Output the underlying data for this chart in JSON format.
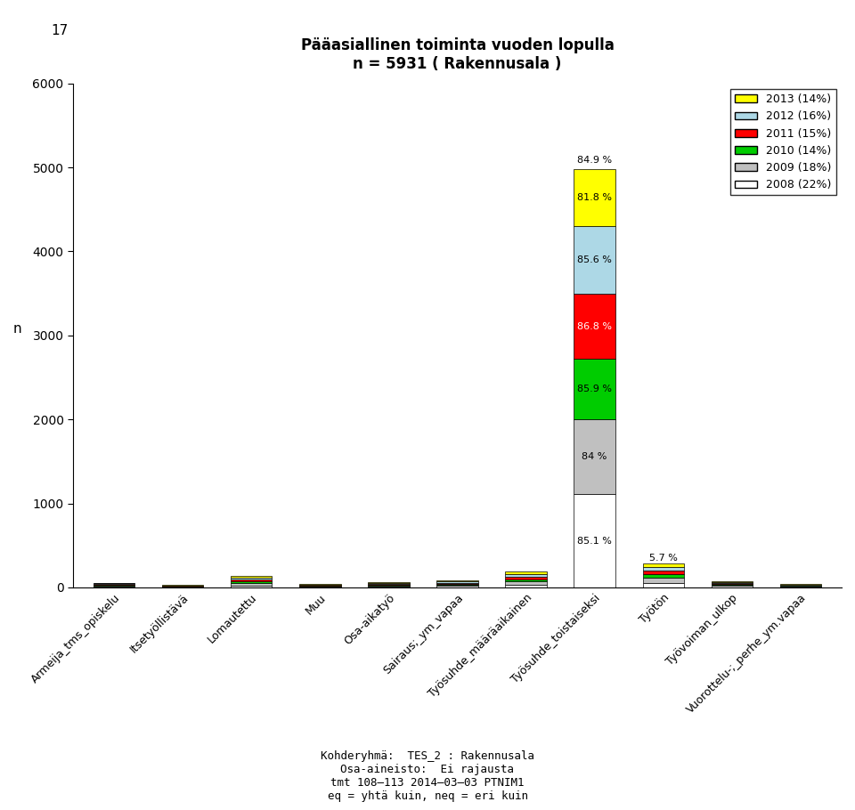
{
  "title": "Pääasiallinen toiminta vuoden lopulla\nn = 5931 ( Rakennusala )",
  "page_number": "17",
  "ylabel": "n",
  "ylim": [
    0,
    6000
  ],
  "yticks": [
    0,
    1000,
    2000,
    3000,
    4000,
    5000,
    6000
  ],
  "categories": [
    "Armeija_tms_opiskelu",
    "Itsetyöllistävä",
    "Lomautettu",
    "Muu",
    "Osa-aikatyö",
    "Sairaus;_ym_vapaa",
    "Työsuhde_määräaikainen",
    "Työsuhde_toistaiseksi",
    "Työtön",
    "Työvoiman_ulkop",
    "Vuorottelu-;_perhe_ym.vapaa"
  ],
  "xtick_labels": [
    "Armeija_tms_opiskelu",
    "Itsetyöllistävä",
    "Lomautettu",
    "Muu",
    "Osa-aikatyö",
    "Sairaus;_ym_vapaa",
    "Työsuhde_määräaikainen",
    "Työsuhde_toistaiseksi",
    "Työtön",
    "Työvoiman_ulkop",
    "Vuorottelu-;_perhe_ym.vapaa"
  ],
  "years": [
    "2008",
    "2009",
    "2010",
    "2011",
    "2012",
    "2013"
  ],
  "year_labels": [
    "2008 (22%)",
    "2009 (18%)",
    "2010 (14%)",
    "2011 (15%)",
    "2012 (16%)",
    "2013 (14%)"
  ],
  "colors": [
    "#ffffff",
    "#c0c0c0",
    "#00cc00",
    "#ff0000",
    "#add8e6",
    "#ffff00"
  ],
  "bar_values": {
    "Armeija_tms_opiskelu": [
      12,
      10,
      8,
      8,
      10,
      9
    ],
    "Itsetyöllistävä": [
      6,
      5,
      4,
      4,
      5,
      4
    ],
    "Lomautettu": [
      22,
      26,
      24,
      22,
      20,
      18
    ],
    "Muu": [
      8,
      7,
      6,
      6,
      7,
      6
    ],
    "Osa-aikatyö": [
      12,
      10,
      8,
      9,
      11,
      10
    ],
    "Sairaus;_ym_vapaa": [
      16,
      14,
      12,
      13,
      15,
      14
    ],
    "Työsuhde_määräaikainen": [
      36,
      33,
      26,
      28,
      33,
      30
    ],
    "Työsuhde_toistaiseksi": [
      1110,
      897,
      713,
      773,
      813,
      679
    ],
    "Työtön": [
      55,
      58,
      44,
      42,
      48,
      40
    ],
    "Työvoiman_ulkop": [
      16,
      14,
      11,
      11,
      13,
      12
    ],
    "Vuorottelu-;_perhe_ym.vapaa": [
      8,
      6,
      5,
      6,
      7,
      6
    ]
  },
  "ts_pct_labels": [
    "85.1 %",
    "84 %",
    "85.9 %",
    "86.8 %",
    "85.6 %",
    "81.8 %"
  ],
  "ts_top_label": "84.9 %",
  "tyoton_top_label": "5.7 %",
  "footer_lines": [
    "Kohderyhmä:  TES_2 : Rakennusala",
    "Osa-aineisto:  Ei rajausta",
    "tmt 108–113 2014–03–03 PTNIM1",
    "eq = yhtä kuin, neq = eri kuin"
  ],
  "background_color": "#ffffff"
}
